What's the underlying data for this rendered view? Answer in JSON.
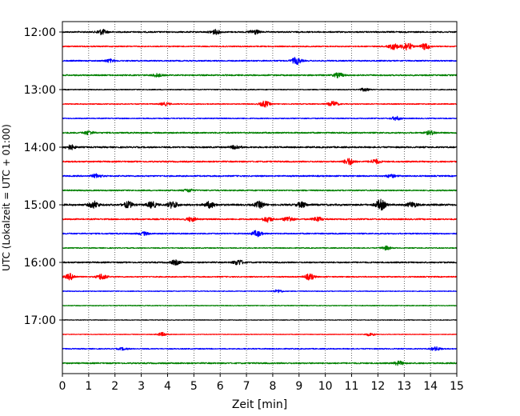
{
  "chart_data": {
    "type": "line",
    "xlabel": "Zeit  [min]",
    "ylabel": "UTC (Lokalzeit = UTC + 01:00)",
    "xlim": [
      0,
      15
    ],
    "x_ticks": [
      0,
      1,
      2,
      3,
      4,
      5,
      6,
      7,
      8,
      9,
      10,
      11,
      12,
      13,
      14,
      15
    ],
    "y_tick_labels": [
      "12:00",
      "13:00",
      "14:00",
      "15:00",
      "16:00",
      "17:00"
    ],
    "grid": "vertical dotted at each minute",
    "colors": [
      "#000000",
      "#ff0000",
      "#0000ff",
      "#008000"
    ],
    "traces": [
      {
        "start": "12:00",
        "color": "#000000",
        "amplitude": 0.55,
        "events": [
          {
            "t": 1.5,
            "a": 0.7
          },
          {
            "t": 5.8,
            "a": 0.6
          },
          {
            "t": 7.3,
            "a": 0.6
          }
        ]
      },
      {
        "start": "12:15",
        "color": "#ff0000",
        "amplitude": 0.45,
        "events": [
          {
            "t": 13.1,
            "a": 1.2
          },
          {
            "t": 12.6,
            "a": 0.8
          },
          {
            "t": 13.8,
            "a": 0.8
          }
        ]
      },
      {
        "start": "12:30",
        "color": "#0000ff",
        "amplitude": 0.5,
        "events": [
          {
            "t": 8.9,
            "a": 0.9
          },
          {
            "t": 1.8,
            "a": 0.4
          }
        ]
      },
      {
        "start": "12:45",
        "color": "#008000",
        "amplitude": 0.55,
        "events": [
          {
            "t": 10.5,
            "a": 0.6
          },
          {
            "t": 3.6,
            "a": 0.4
          }
        ]
      },
      {
        "start": "13:00",
        "color": "#000000",
        "amplitude": 0.35,
        "events": [
          {
            "t": 11.5,
            "a": 0.4
          }
        ]
      },
      {
        "start": "13:15",
        "color": "#ff0000",
        "amplitude": 0.4,
        "events": [
          {
            "t": 7.7,
            "a": 0.8
          },
          {
            "t": 10.3,
            "a": 0.7
          },
          {
            "t": 3.9,
            "a": 0.4
          }
        ]
      },
      {
        "start": "13:30",
        "color": "#0000ff",
        "amplitude": 0.4,
        "events": [
          {
            "t": 12.7,
            "a": 0.5
          }
        ]
      },
      {
        "start": "13:45",
        "color": "#008000",
        "amplitude": 0.55,
        "events": [
          {
            "t": 1.0,
            "a": 0.5
          },
          {
            "t": 14.0,
            "a": 0.5
          }
        ]
      },
      {
        "start": "14:00",
        "color": "#000000",
        "amplitude": 0.6,
        "events": [
          {
            "t": 0.3,
            "a": 0.6
          },
          {
            "t": 6.6,
            "a": 0.5
          }
        ]
      },
      {
        "start": "14:15",
        "color": "#ff0000",
        "amplitude": 0.55,
        "events": [
          {
            "t": 10.9,
            "a": 0.9
          },
          {
            "t": 11.9,
            "a": 0.6
          }
        ]
      },
      {
        "start": "14:30",
        "color": "#0000ff",
        "amplitude": 0.55,
        "events": [
          {
            "t": 1.3,
            "a": 0.5
          },
          {
            "t": 12.5,
            "a": 0.4
          }
        ]
      },
      {
        "start": "14:45",
        "color": "#008000",
        "amplitude": 0.5,
        "events": [
          {
            "t": 4.8,
            "a": 0.4
          }
        ]
      },
      {
        "start": "15:00",
        "color": "#000000",
        "amplitude": 0.7,
        "events": [
          {
            "t": 1.2,
            "a": 0.9
          },
          {
            "t": 2.5,
            "a": 0.8
          },
          {
            "t": 3.4,
            "a": 0.8
          },
          {
            "t": 4.2,
            "a": 0.9
          },
          {
            "t": 5.6,
            "a": 0.8
          },
          {
            "t": 7.5,
            "a": 0.8
          },
          {
            "t": 9.1,
            "a": 0.7
          },
          {
            "t": 12.1,
            "a": 1.4
          },
          {
            "t": 13.3,
            "a": 0.7
          }
        ]
      },
      {
        "start": "15:15",
        "color": "#ff0000",
        "amplitude": 0.55,
        "events": [
          {
            "t": 4.9,
            "a": 0.6
          },
          {
            "t": 7.8,
            "a": 0.7
          },
          {
            "t": 8.6,
            "a": 0.7
          },
          {
            "t": 9.7,
            "a": 0.6
          }
        ]
      },
      {
        "start": "15:30",
        "color": "#0000ff",
        "amplitude": 0.5,
        "events": [
          {
            "t": 7.4,
            "a": 0.8
          },
          {
            "t": 3.1,
            "a": 0.4
          }
        ]
      },
      {
        "start": "15:45",
        "color": "#008000",
        "amplitude": 0.4,
        "events": [
          {
            "t": 12.3,
            "a": 0.5
          }
        ]
      },
      {
        "start": "16:00",
        "color": "#000000",
        "amplitude": 0.55,
        "events": [
          {
            "t": 6.7,
            "a": 0.7
          },
          {
            "t": 4.3,
            "a": 0.6
          }
        ]
      },
      {
        "start": "16:15",
        "color": "#ff0000",
        "amplitude": 0.45,
        "events": [
          {
            "t": 0.3,
            "a": 0.8
          },
          {
            "t": 1.5,
            "a": 0.8
          },
          {
            "t": 9.4,
            "a": 0.8
          }
        ]
      },
      {
        "start": "16:30",
        "color": "#0000ff",
        "amplitude": 0.3,
        "events": [
          {
            "t": 8.2,
            "a": 0.4
          }
        ]
      },
      {
        "start": "16:45",
        "color": "#008000",
        "amplitude": 0.3,
        "events": []
      },
      {
        "start": "17:00",
        "color": "#000000",
        "amplitude": 0.25,
        "events": []
      },
      {
        "start": "17:15",
        "color": "#ff0000",
        "amplitude": 0.25,
        "events": [
          {
            "t": 3.8,
            "a": 0.5
          },
          {
            "t": 11.7,
            "a": 0.4
          }
        ]
      },
      {
        "start": "17:30",
        "color": "#0000ff",
        "amplitude": 0.4,
        "events": [
          {
            "t": 14.2,
            "a": 0.5
          },
          {
            "t": 2.3,
            "a": 0.3
          }
        ]
      },
      {
        "start": "17:45",
        "color": "#008000",
        "amplitude": 0.55,
        "events": [
          {
            "t": 12.8,
            "a": 0.5
          }
        ]
      }
    ]
  }
}
